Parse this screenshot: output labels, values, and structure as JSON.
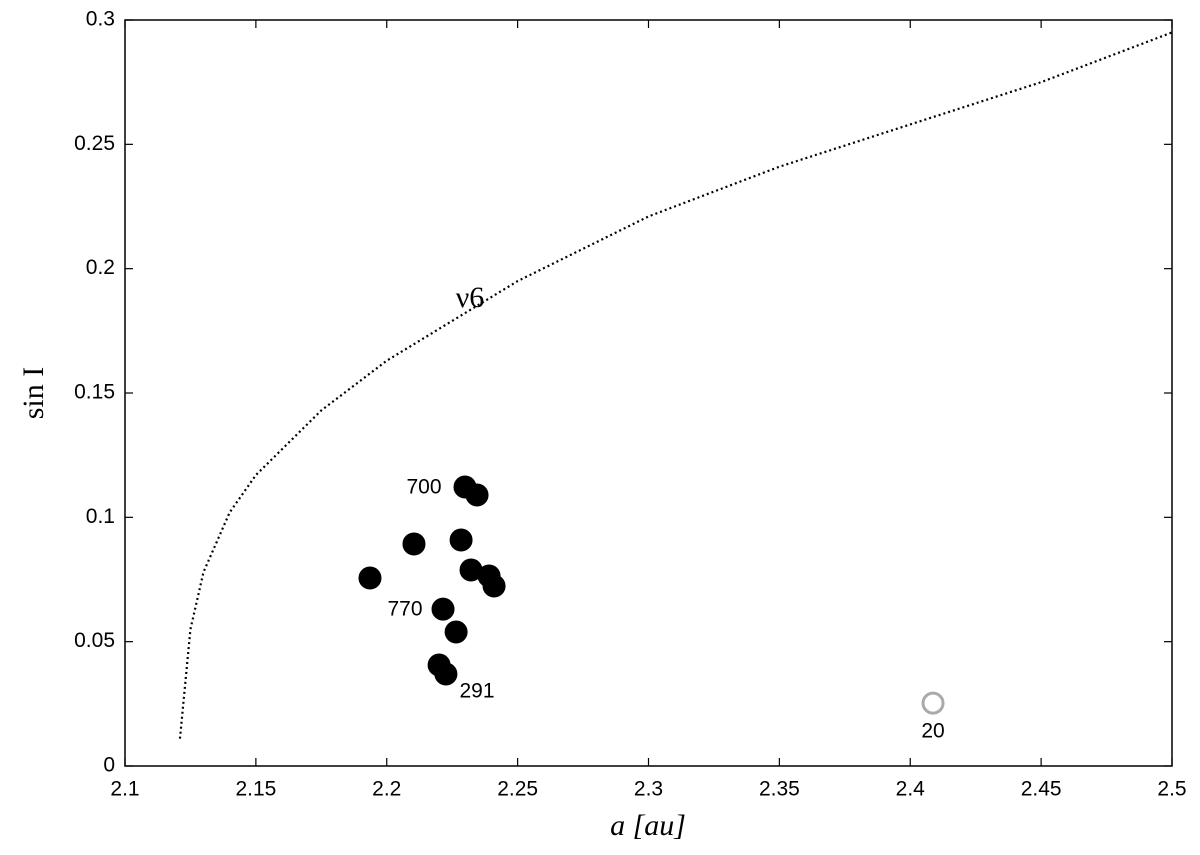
{
  "chart_data": {
    "type": "scatter",
    "xlabel": "a [au]",
    "ylabel": "sin I",
    "xlim": [
      2.1,
      2.5
    ],
    "ylim": [
      0,
      0.3
    ],
    "xticks": [
      2.1,
      2.15,
      2.2,
      2.25,
      2.3,
      2.35,
      2.4,
      2.45,
      2.5
    ],
    "yticks": [
      0,
      0.05,
      0.1,
      0.15,
      0.2,
      0.25,
      0.3
    ],
    "series": [
      {
        "type": "scatter",
        "color": "#000000",
        "x": [
          2.1936,
          2.2104,
          2.2284,
          2.2299,
          2.2345,
          2.2322,
          2.2391,
          2.241,
          2.2215,
          2.2265,
          2.22,
          2.2226
        ],
        "values": [
          0.0756,
          0.0893,
          0.0909,
          0.1122,
          0.109,
          0.0788,
          0.0764,
          0.0724,
          0.0631,
          0.0539,
          0.0406,
          0.037
        ]
      },
      {
        "type": "scatter",
        "color": "#ffffff",
        "x": [
          2.4087
        ],
        "values": [
          0.0253
        ]
      },
      {
        "type": "line",
        "color": "#000000",
        "x": [
          2.121,
          2.125,
          2.13,
          2.14,
          2.15,
          2.175,
          2.2,
          2.25,
          2.3,
          2.35,
          2.4,
          2.45,
          2.5
        ],
        "values": [
          0.011,
          0.055,
          0.078,
          0.102,
          0.117,
          0.143,
          0.163,
          0.195,
          0.221,
          0.241,
          0.258,
          0.275,
          0.295
        ]
      }
    ],
    "annotations": [
      {
        "text": "700"
      },
      {
        "text": "770"
      },
      {
        "text": "291"
      },
      {
        "text": "20"
      },
      {
        "text": "ν6"
      }
    ]
  }
}
